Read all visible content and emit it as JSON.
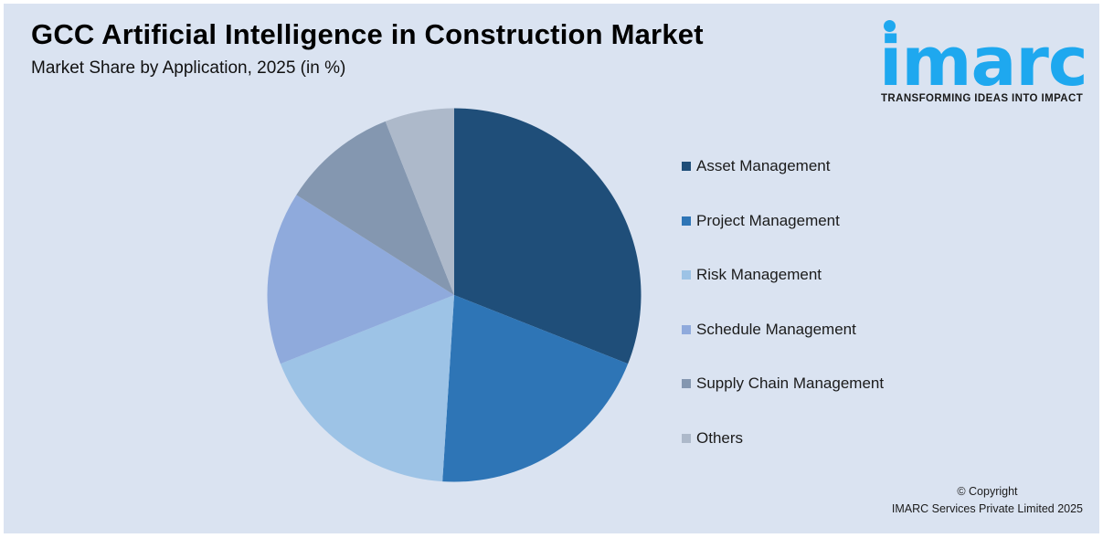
{
  "header": {
    "title": "GCC Artificial Intelligence in Construction Market",
    "subtitle": "Market Share by Application, 2025 (in %)"
  },
  "logo": {
    "word": "imarc",
    "tagline": "TRANSFORMING IDEAS INTO IMPACT",
    "color": "#1ea8ef"
  },
  "footer": {
    "copyright_line1": "© Copyright",
    "copyright_line2": "IMARC Services Private Limited 2025"
  },
  "chart_data": {
    "type": "pie",
    "title": "GCC Artificial Intelligence in Construction Market",
    "subtitle": "Market Share by Application, 2025 (in %)",
    "categories": [
      "Asset Management",
      "Project Management",
      "Risk Management",
      "Schedule Management",
      "Supply Chain Management",
      "Others"
    ],
    "values": [
      31,
      20,
      18,
      15,
      10,
      6
    ],
    "colors": [
      "#1f4e79",
      "#2e75b6",
      "#9dc3e6",
      "#8faadc",
      "#8497b0",
      "#adb9ca"
    ],
    "start_angle": "12 o'clock",
    "direction": "clockwise",
    "data_labels": false,
    "legend_position": "right"
  },
  "legend": {
    "items": [
      {
        "label": "Asset Management",
        "color": "#1f4e79"
      },
      {
        "label": "Project Management",
        "color": "#2e75b6"
      },
      {
        "label": "Risk Management",
        "color": "#9dc3e6"
      },
      {
        "label": "Schedule Management",
        "color": "#8faadc"
      },
      {
        "label": "Supply Chain Management",
        "color": "#8497b0"
      },
      {
        "label": "Others",
        "color": "#adb9ca"
      }
    ]
  }
}
